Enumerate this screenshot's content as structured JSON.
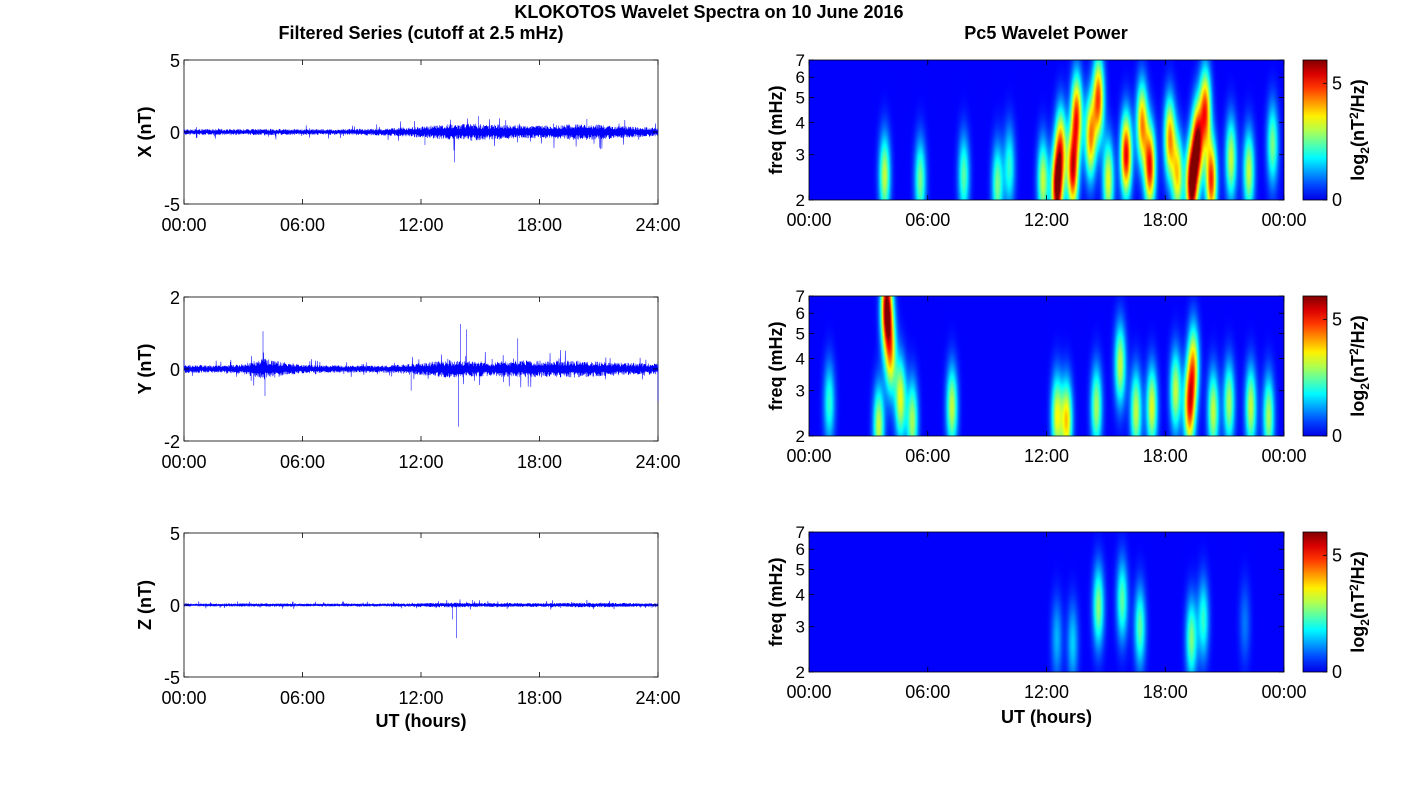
{
  "figure": {
    "title": "KLOKOTOS Wavelet Spectra on 10 June 2016",
    "left_column_title": "Filtered Series (cutoff at 2.5 mHz)",
    "right_column_title": "Pc5 Wavelet Power"
  },
  "chart_data": [
    {
      "type": "line",
      "component": "X",
      "ylabel": "X (nT)",
      "xlabel": "",
      "ylim": [
        -5,
        5
      ],
      "yticks": [
        "5",
        "0",
        "-5"
      ],
      "xlim_hours": [
        0,
        24
      ],
      "xticks": [
        "00:00",
        "06:00",
        "12:00",
        "18:00",
        "24:00"
      ],
      "series_color": "#0000ff",
      "activity_profile": {
        "x_hours": [
          0,
          2,
          4,
          6,
          8,
          10,
          11.5,
          12.5,
          13.5,
          14.5,
          15.5,
          16.5,
          17.5,
          18.5,
          19.5,
          20.5,
          21.5,
          22.5,
          24
        ],
        "amplitude_nT": [
          0.2,
          0.2,
          0.22,
          0.2,
          0.2,
          0.25,
          0.35,
          0.45,
          0.55,
          0.6,
          0.55,
          0.5,
          0.45,
          0.45,
          0.55,
          0.55,
          0.5,
          0.4,
          0.3
        ]
      },
      "spikes": [
        {
          "t": 13.7,
          "v": -2.1
        },
        {
          "t": 14.9,
          "v": 1.1
        },
        {
          "t": 12.2,
          "v": -0.9
        },
        {
          "t": 20.4,
          "v": 0.9
        },
        {
          "t": 21.1,
          "v": -1.2
        }
      ],
      "grid": false
    },
    {
      "type": "line",
      "component": "Y",
      "ylabel": "Y (nT)",
      "xlabel": "",
      "ylim": [
        -2,
        2
      ],
      "yticks": [
        "2",
        "0",
        "-2"
      ],
      "xlim_hours": [
        0,
        24
      ],
      "xticks": [
        "00:00",
        "06:00",
        "12:00",
        "18:00",
        "24:00"
      ],
      "series_color": "#0000ff",
      "activity_profile": {
        "x_hours": [
          0,
          2,
          3,
          4,
          5,
          6,
          8,
          10,
          11.5,
          12.5,
          13.5,
          14.5,
          15.5,
          16.5,
          17.5,
          18.5,
          19.5,
          20.5,
          21.5,
          22.5,
          24
        ],
        "amplitude_nT": [
          0.12,
          0.1,
          0.14,
          0.3,
          0.2,
          0.12,
          0.1,
          0.1,
          0.14,
          0.2,
          0.25,
          0.22,
          0.2,
          0.22,
          0.25,
          0.22,
          0.25,
          0.22,
          0.2,
          0.18,
          0.16
        ]
      },
      "spikes": [
        {
          "t": 4.0,
          "v": 1.05
        },
        {
          "t": 4.1,
          "v": -0.75
        },
        {
          "t": 13.9,
          "v": -1.6
        },
        {
          "t": 14.0,
          "v": 1.25
        },
        {
          "t": 14.3,
          "v": 1.1
        },
        {
          "t": 11.5,
          "v": -0.6
        },
        {
          "t": 16.9,
          "v": 0.85
        },
        {
          "t": 24.0,
          "v": -0.9
        }
      ],
      "grid": false
    },
    {
      "type": "line",
      "component": "Z",
      "ylabel": "Z (nT)",
      "xlabel": "UT (hours)",
      "ylim": [
        -5,
        5
      ],
      "yticks": [
        "5",
        "0",
        "-5"
      ],
      "xlim_hours": [
        0,
        24
      ],
      "xticks": [
        "00:00",
        "06:00",
        "12:00",
        "18:00",
        "24:00"
      ],
      "series_color": "#0000ff",
      "activity_profile": {
        "x_hours": [
          0,
          4,
          8,
          11.5,
          12.5,
          13.5,
          14.5,
          16,
          18,
          20,
          22,
          24
        ],
        "amplitude_nT": [
          0.1,
          0.12,
          0.1,
          0.12,
          0.15,
          0.18,
          0.15,
          0.14,
          0.14,
          0.16,
          0.15,
          0.12
        ]
      },
      "spikes": [
        {
          "t": 13.8,
          "v": -2.3
        },
        {
          "t": 13.6,
          "v": -1.0
        },
        {
          "t": 14.6,
          "v": 0.35
        }
      ],
      "grid": false
    },
    {
      "type": "heatmap",
      "component": "X",
      "title": "Pc5 Wavelet Power",
      "ylabel": "freq (mHz)",
      "xlabel": "",
      "yscale": "log",
      "ylim_mHz": [
        2,
        7
      ],
      "yticks": [
        "2",
        "3",
        "4",
        "5",
        "6",
        "7"
      ],
      "xlim_hours": [
        0,
        24
      ],
      "xticks": [
        "00:00",
        "06:00",
        "12:00",
        "18:00",
        "00:00"
      ],
      "colorbar": {
        "label": "log2(nT2/Hz)",
        "ticks": [
          "0",
          "5"
        ],
        "range": [
          0,
          6
        ],
        "colormap": "jet"
      },
      "blobs": [
        {
          "t": 3.8,
          "f": 2.5,
          "a": 3.0
        },
        {
          "t": 5.6,
          "f": 2.4,
          "a": 2.5
        },
        {
          "t": 7.8,
          "f": 2.5,
          "a": 2.3
        },
        {
          "t": 9.5,
          "f": 2.3,
          "a": 2.5
        },
        {
          "t": 10.1,
          "f": 2.7,
          "a": 2.0
        },
        {
          "t": 11.8,
          "f": 2.4,
          "a": 3.0
        },
        {
          "t": 12.5,
          "f": 2.2,
          "a": 5.5
        },
        {
          "t": 12.7,
          "f": 3.2,
          "a": 4.0
        },
        {
          "t": 13.3,
          "f": 2.6,
          "a": 5.0
        },
        {
          "t": 13.5,
          "f": 4.3,
          "a": 4.5
        },
        {
          "t": 14.2,
          "f": 3.5,
          "a": 4.0
        },
        {
          "t": 14.6,
          "f": 5.0,
          "a": 4.5
        },
        {
          "t": 15.1,
          "f": 2.4,
          "a": 3.2
        },
        {
          "t": 16.0,
          "f": 3.0,
          "a": 5.2
        },
        {
          "t": 16.8,
          "f": 4.0,
          "a": 4.0
        },
        {
          "t": 17.2,
          "f": 2.7,
          "a": 5.0
        },
        {
          "t": 18.2,
          "f": 3.5,
          "a": 4.0
        },
        {
          "t": 18.6,
          "f": 2.5,
          "a": 3.5
        },
        {
          "t": 19.3,
          "f": 2.3,
          "a": 6.0
        },
        {
          "t": 19.6,
          "f": 3.3,
          "a": 5.5
        },
        {
          "t": 20.0,
          "f": 4.5,
          "a": 4.5
        },
        {
          "t": 20.3,
          "f": 2.4,
          "a": 4.8
        },
        {
          "t": 21.3,
          "f": 2.9,
          "a": 3.0
        },
        {
          "t": 22.2,
          "f": 2.6,
          "a": 3.0
        },
        {
          "t": 23.4,
          "f": 3.3,
          "a": 2.5
        }
      ]
    },
    {
      "type": "heatmap",
      "component": "Y",
      "ylabel": "freq (mHz)",
      "xlabel": "",
      "yscale": "log",
      "ylim_mHz": [
        2,
        7
      ],
      "yticks": [
        "2",
        "3",
        "4",
        "5",
        "6",
        "7"
      ],
      "xlim_hours": [
        0,
        24
      ],
      "xticks": [
        "00:00",
        "06:00",
        "12:00",
        "18:00",
        "00:00"
      ],
      "colorbar": {
        "label": "log2(nT2/Hz)",
        "ticks": [
          "0",
          "5"
        ],
        "range": [
          0,
          6
        ],
        "colormap": "jet"
      },
      "blobs": [
        {
          "t": 1.0,
          "f": 2.7,
          "a": 2.0
        },
        {
          "t": 3.5,
          "f": 2.2,
          "a": 3.0
        },
        {
          "t": 3.9,
          "f": 6.3,
          "a": 5.8
        },
        {
          "t": 4.1,
          "f": 4.2,
          "a": 3.5
        },
        {
          "t": 4.6,
          "f": 2.8,
          "a": 3.2
        },
        {
          "t": 5.2,
          "f": 2.3,
          "a": 2.8
        },
        {
          "t": 7.2,
          "f": 2.6,
          "a": 3.0
        },
        {
          "t": 12.5,
          "f": 2.4,
          "a": 3.2
        },
        {
          "t": 13.0,
          "f": 2.3,
          "a": 3.6
        },
        {
          "t": 14.5,
          "f": 2.6,
          "a": 2.8
        },
        {
          "t": 15.7,
          "f": 3.8,
          "a": 3.0
        },
        {
          "t": 16.5,
          "f": 2.5,
          "a": 3.0
        },
        {
          "t": 17.3,
          "f": 2.6,
          "a": 3.2
        },
        {
          "t": 18.5,
          "f": 3.0,
          "a": 3.0
        },
        {
          "t": 19.2,
          "f": 2.6,
          "a": 4.5
        },
        {
          "t": 19.4,
          "f": 3.8,
          "a": 3.5
        },
        {
          "t": 20.4,
          "f": 2.5,
          "a": 3.0
        },
        {
          "t": 21.2,
          "f": 2.7,
          "a": 2.8
        },
        {
          "t": 22.3,
          "f": 2.6,
          "a": 3.0
        },
        {
          "t": 23.2,
          "f": 2.4,
          "a": 2.8
        }
      ]
    },
    {
      "type": "heatmap",
      "component": "Z",
      "ylabel": "freq (mHz)",
      "xlabel": "UT (hours)",
      "yscale": "log",
      "ylim_mHz": [
        2,
        7
      ],
      "yticks": [
        "2",
        "3",
        "4",
        "5",
        "6",
        "7"
      ],
      "xlim_hours": [
        0,
        24
      ],
      "xticks": [
        "00:00",
        "06:00",
        "12:00",
        "18:00",
        "00:00"
      ],
      "colorbar": {
        "label": "log2(nT2/Hz)",
        "ticks": [
          "0",
          "5"
        ],
        "range": [
          0,
          6
        ],
        "colormap": "jet"
      },
      "blobs": [
        {
          "t": 12.5,
          "f": 2.7,
          "a": 1.2
        },
        {
          "t": 13.3,
          "f": 2.6,
          "a": 1.4
        },
        {
          "t": 14.6,
          "f": 3.6,
          "a": 2.6
        },
        {
          "t": 15.8,
          "f": 3.8,
          "a": 2.3
        },
        {
          "t": 16.7,
          "f": 3.0,
          "a": 2.3
        },
        {
          "t": 19.3,
          "f": 2.7,
          "a": 2.5
        },
        {
          "t": 19.9,
          "f": 3.2,
          "a": 2.0
        },
        {
          "t": 22.0,
          "f": 3.1,
          "a": 0.8
        }
      ]
    }
  ]
}
